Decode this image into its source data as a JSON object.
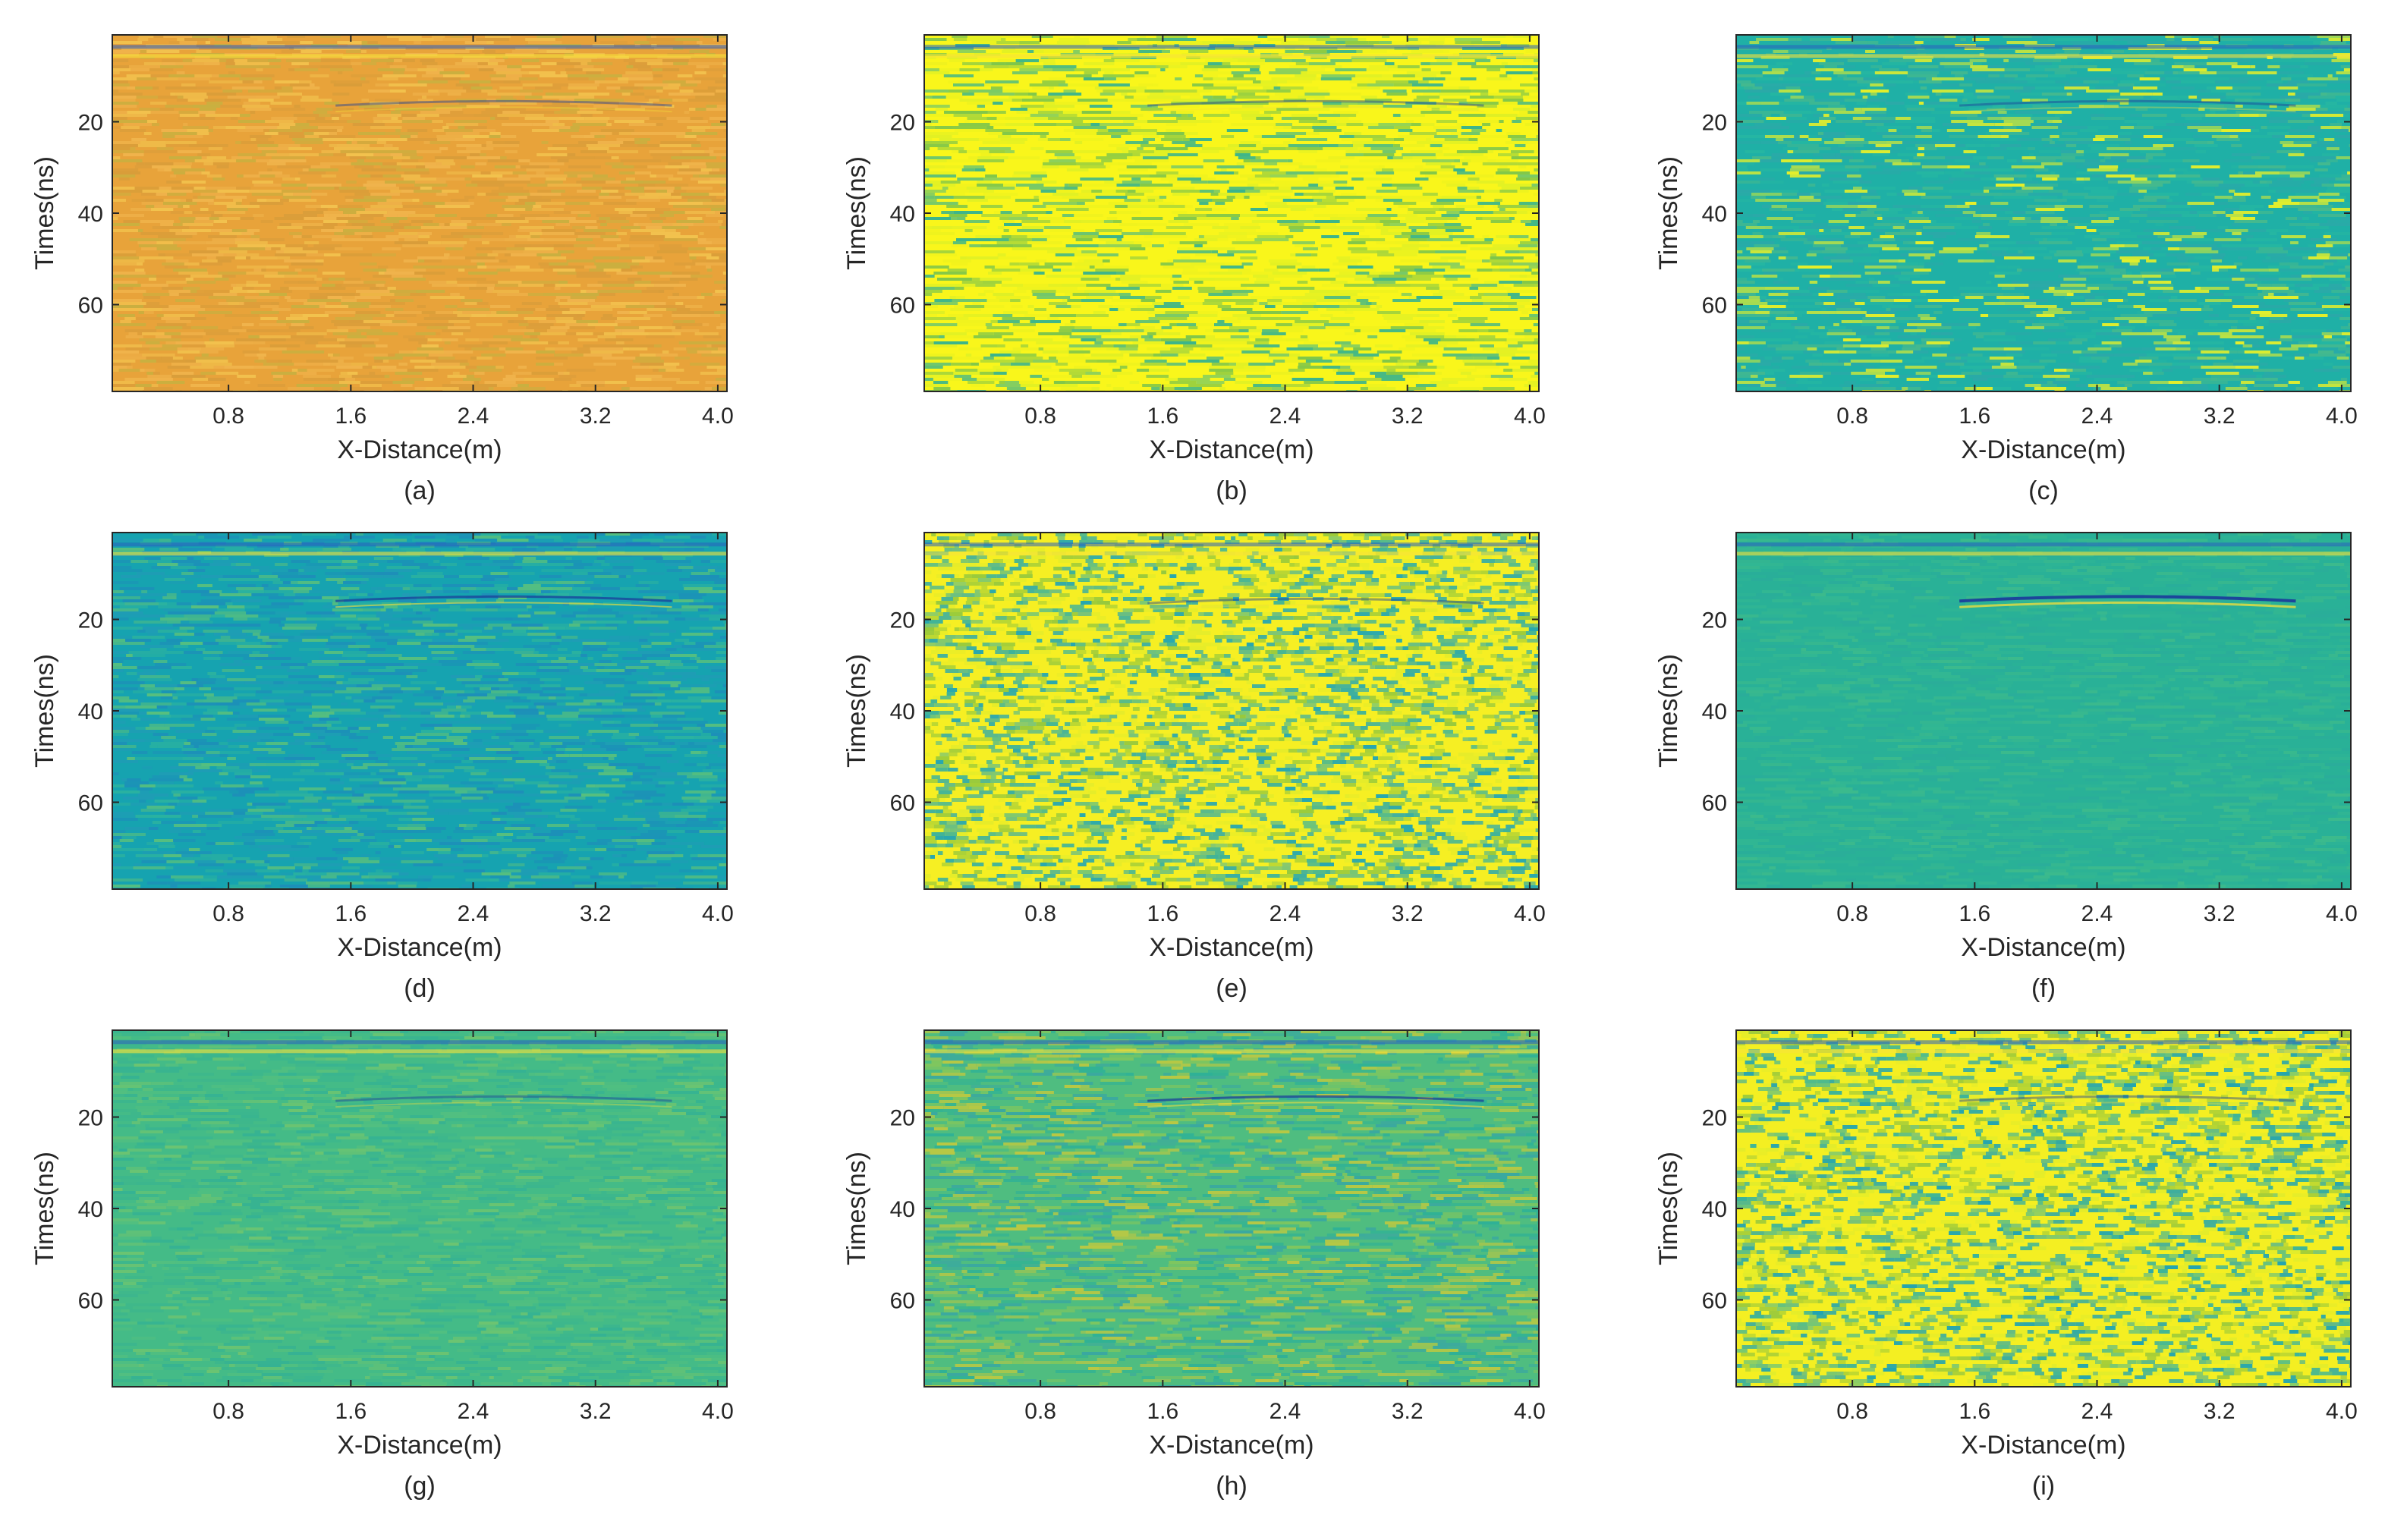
{
  "chart_data": [
    {
      "type": "heatmap",
      "panel": "a",
      "caption": "(a)",
      "xlabel": "X-Distance(m)",
      "ylabel": "Times(ns)",
      "xticks": [
        "0.8",
        "1.6",
        "2.4",
        "3.2",
        "4.0"
      ],
      "yticks": [
        "20",
        "40",
        "60"
      ],
      "xlim": [
        0.04,
        4.06
      ],
      "ylim": [
        1,
        79
      ],
      "grid": false,
      "palette": [
        "#e8a33a",
        "#f0b44c",
        "#d99d3a",
        "#c8b040",
        "#f2c24e"
      ],
      "hyperbola": {
        "x_center": 2.6,
        "t_apex": 15.5,
        "strength": "faint"
      }
    },
    {
      "type": "heatmap",
      "panel": "b",
      "caption": "(b)",
      "xlabel": "X-Distance(m)",
      "ylabel": "Times(ns)",
      "xticks": [
        "0.8",
        "1.6",
        "2.4",
        "3.2",
        "4.0"
      ],
      "yticks": [
        "20",
        "40",
        "60"
      ],
      "xlim": [
        0.04,
        4.06
      ],
      "ylim": [
        1,
        79
      ],
      "grid": false,
      "palette": [
        "#f9f61b",
        "#eef21e",
        "#7fc64a",
        "#3ab48c",
        "#dff025"
      ],
      "hyperbola": {
        "x_center": 2.6,
        "t_apex": 15.5,
        "strength": "faint"
      }
    },
    {
      "type": "heatmap",
      "panel": "c",
      "caption": "(c)",
      "xlabel": "X-Distance(m)",
      "ylabel": "Times(ns)",
      "xticks": [
        "0.8",
        "1.6",
        "2.4",
        "3.2",
        "4.0"
      ],
      "yticks": [
        "20",
        "40",
        "60"
      ],
      "xlim": [
        0.04,
        4.06
      ],
      "ylim": [
        1,
        79
      ],
      "grid": false,
      "palette": [
        "#1fb0a6",
        "#25b6a2",
        "#45b98e",
        "#e6ef2a",
        "#2ba9a8"
      ],
      "hyperbola": {
        "x_center": 2.6,
        "t_apex": 15.5,
        "strength": "faint"
      }
    },
    {
      "type": "heatmap",
      "panel": "d",
      "caption": "(d)",
      "xlabel": "X-Distance(m)",
      "ylabel": "Times(ns)",
      "xticks": [
        "0.8",
        "1.6",
        "2.4",
        "3.2",
        "4.0"
      ],
      "yticks": [
        "20",
        "40",
        "60"
      ],
      "xlim": [
        0.04,
        4.06
      ],
      "ylim": [
        1,
        79
      ],
      "grid": false,
      "palette": [
        "#16a3b0",
        "#1f9cb5",
        "#2bb29f",
        "#57bf7e",
        "#1d8fb8"
      ],
      "hyperbola": {
        "x_center": 2.6,
        "t_apex": 15.0,
        "strength": "medium"
      }
    },
    {
      "type": "heatmap",
      "panel": "e",
      "caption": "(e)",
      "xlabel": "X-Distance(m)",
      "ylabel": "Times(ns)",
      "xticks": [
        "0.8",
        "1.6",
        "2.4",
        "3.2",
        "4.0"
      ],
      "yticks": [
        "20",
        "40",
        "60"
      ],
      "xlim": [
        0.04,
        4.06
      ],
      "ylim": [
        1,
        79
      ],
      "grid": false,
      "palette": [
        "#f6ef23",
        "#e5ec2a",
        "#97c93d",
        "#3eb39a",
        "#26a7b0"
      ],
      "hyperbola": {
        "x_center": 2.6,
        "t_apex": 15.5,
        "strength": "faint"
      }
    },
    {
      "type": "heatmap",
      "panel": "f",
      "caption": "(f)",
      "xlabel": "X-Distance(m)",
      "ylabel": "Times(ns)",
      "xticks": [
        "0.8",
        "1.6",
        "2.4",
        "3.2",
        "4.0"
      ],
      "yticks": [
        "20",
        "40",
        "60"
      ],
      "xlim": [
        0.04,
        4.06
      ],
      "ylim": [
        1,
        79
      ],
      "grid": false,
      "palette": [
        "#29b197",
        "#2eb495",
        "#33b792",
        "#2aad9a",
        "#3cba8c"
      ],
      "hyperbola": {
        "x_center": 2.6,
        "t_apex": 15.0,
        "strength": "strong"
      }
    },
    {
      "type": "heatmap",
      "panel": "g",
      "caption": "(g)",
      "xlabel": "X-Distance(m)",
      "ylabel": "Times(ns)",
      "xticks": [
        "0.8",
        "1.6",
        "2.4",
        "3.2",
        "4.0"
      ],
      "yticks": [
        "20",
        "40",
        "60"
      ],
      "xlim": [
        0.04,
        4.06
      ],
      "ylim": [
        1,
        79
      ],
      "grid": false,
      "palette": [
        "#44bb87",
        "#52bf80",
        "#3cb68d",
        "#6cc471",
        "#35b293"
      ],
      "hyperbola": {
        "x_center": 2.6,
        "t_apex": 15.5,
        "strength": "faint"
      }
    },
    {
      "type": "heatmap",
      "panel": "h",
      "caption": "(h)",
      "xlabel": "X-Distance(m)",
      "ylabel": "Times(ns)",
      "xticks": [
        "0.8",
        "1.6",
        "2.4",
        "3.2",
        "4.0"
      ],
      "yticks": [
        "20",
        "40",
        "60"
      ],
      "xlim": [
        0.04,
        4.06
      ],
      "ylim": [
        1,
        79
      ],
      "grid": false,
      "palette": [
        "#4fbd80",
        "#80c65e",
        "#2fb196",
        "#b9c843",
        "#3aa8a0"
      ],
      "hyperbola": {
        "x_center": 2.6,
        "t_apex": 15.5,
        "strength": "medium"
      }
    },
    {
      "type": "heatmap",
      "panel": "i",
      "caption": "(i)",
      "xlabel": "X-Distance(m)",
      "ylabel": "Times(ns)",
      "xticks": [
        "0.8",
        "1.6",
        "2.4",
        "3.2",
        "4.0"
      ],
      "yticks": [
        "20",
        "40",
        "60"
      ],
      "xlim": [
        0.04,
        4.06
      ],
      "ylim": [
        1,
        79
      ],
      "grid": false,
      "palette": [
        "#f4ef22",
        "#e2ec2b",
        "#9cca3b",
        "#39b39b",
        "#22a4b0"
      ],
      "hyperbola": {
        "x_center": 2.6,
        "t_apex": 15.5,
        "strength": "faint"
      }
    }
  ]
}
